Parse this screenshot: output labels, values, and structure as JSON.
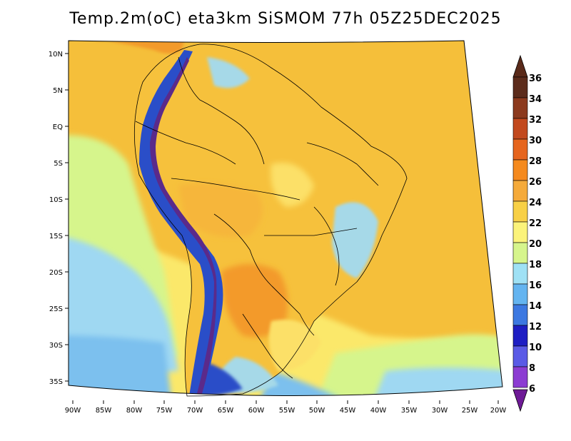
{
  "title": "Temp.2m(oC) eta3km SiSMOM 77h 05Z25DEC2025",
  "lat_labels": [
    "10N",
    "5N",
    "EQ",
    "5S",
    "10S",
    "15S",
    "20S",
    "25S",
    "30S",
    "35S"
  ],
  "lon_labels": [
    "90W",
    "85W",
    "80W",
    "75W",
    "70W",
    "65W",
    "60W",
    "55W",
    "50W",
    "45W",
    "40W",
    "35W",
    "30W",
    "25W",
    "20W"
  ],
  "colorbar": {
    "labels": [
      "36",
      "34",
      "32",
      "30",
      "28",
      "26",
      "24",
      "22",
      "20",
      "18",
      "16",
      "14",
      "12",
      "10",
      "8",
      "6"
    ],
    "colors": [
      "#5c2c1c",
      "#8c3a1e",
      "#c2491e",
      "#e6651e",
      "#f58a1e",
      "#f5aa3a",
      "#f8d046",
      "#fbf37a",
      "#d6f58c",
      "#9fe1f5",
      "#64b4f0",
      "#3c78e1",
      "#1e1ec3",
      "#5a5ae6",
      "#8c3cd2",
      "#6e1a96"
    ],
    "top_color": "#5a2a1a",
    "bottom_color": "#6e1a96"
  },
  "field_colors": {
    "ocean_warm": "#f5bf3a",
    "ocean_mid": "#fbe86a",
    "ocean_cool": "#d6f58c",
    "ocean_cold": "#9fd8f2",
    "ocean_colder": "#7cc0ee",
    "land_hot": "#f39a2a",
    "land_warm": "#f6c13c",
    "land_mild": "#fce068",
    "highlands": "#a6d9e8",
    "andes_cold": "#5b2a8a",
    "andes_blue": "#2a4ec8",
    "borders": "#000000"
  }
}
